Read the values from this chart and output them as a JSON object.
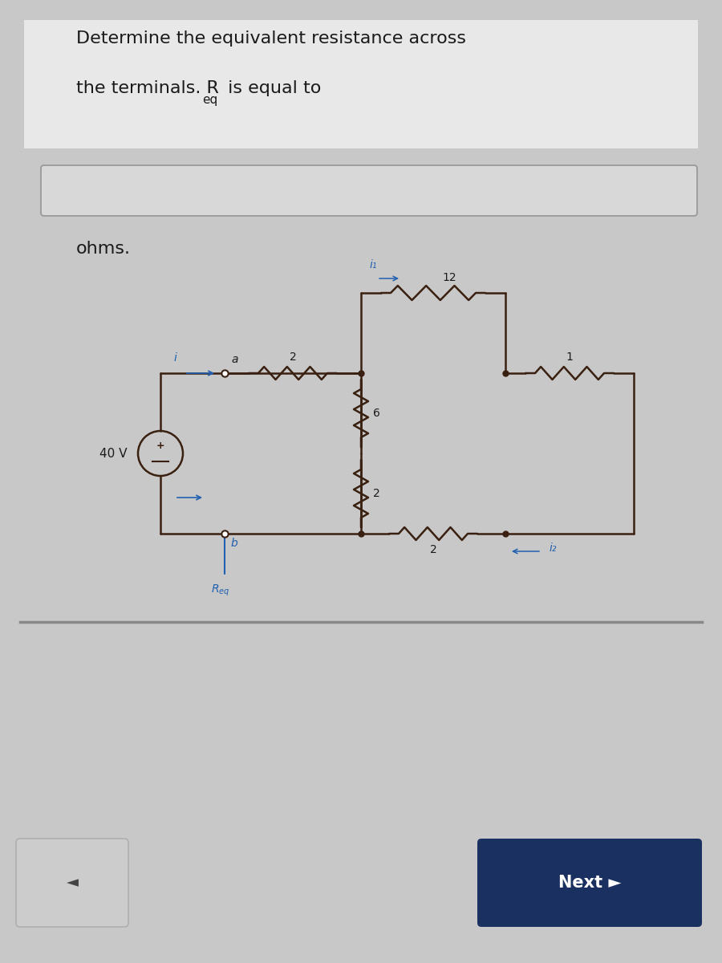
{
  "bg_color": "#c8c8c8",
  "panel_color": "#e2e2e2",
  "text_color": "#1a1a1a",
  "title_line1": "Determine the equivalent resistance across",
  "title_line2_pre": "the terminals. R",
  "title_line2_sub": "eq",
  "title_line2_post": " is equal to",
  "ohms_text": "ohms.",
  "voltage_label": "40 V",
  "label_i": "i",
  "label_a": "a",
  "label_i1": "i₁",
  "label_i2": "i₂",
  "label_b": "b",
  "label_Req": "Rₑⁱ",
  "r_top": "12",
  "r_series": "2",
  "r_mid_top": "6",
  "r_mid_bot": "2",
  "r_bottom": "2",
  "r_right": "1",
  "wire_color": "#3a2010",
  "blue_color": "#2060b0",
  "next_button_color": "#1a3060",
  "next_button_text": "Next ►",
  "divider_color": "#888888",
  "title_fontsize": 16,
  "label_fontsize": 11,
  "small_fontsize": 10
}
